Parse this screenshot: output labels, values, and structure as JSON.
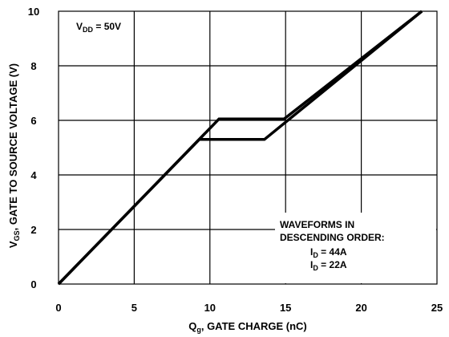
{
  "chart_data": {
    "type": "line",
    "title": "",
    "xlabel": {
      "main": "Q",
      "sub": "g",
      "rest": ", GATE CHARGE (nC)"
    },
    "ylabel": {
      "main": "V",
      "sub": "GS",
      "rest": ", GATE TO SOURCE VOLTAGE (V)"
    },
    "xlim": [
      0,
      25
    ],
    "ylim": [
      0,
      10
    ],
    "x_ticks": [
      0,
      5,
      10,
      15,
      20,
      25
    ],
    "y_ticks": [
      0,
      2,
      4,
      6,
      8,
      10
    ],
    "grid": true,
    "annotations": {
      "vdd": {
        "main": "V",
        "sub": "DD",
        "rest": " = 50V"
      },
      "waveforms_line1": "WAVEFORMS IN",
      "waveforms_line2": "DESCENDING ORDER:",
      "id1": {
        "main": "I",
        "sub": "D",
        "rest": " = 44A"
      },
      "id2": {
        "main": "I",
        "sub": "D",
        "rest": " = 22A"
      }
    },
    "series": [
      {
        "points": [
          [
            0,
            0
          ],
          [
            10.6,
            6.05
          ],
          [
            14.9,
            6.05
          ],
          [
            24,
            10
          ]
        ]
      },
      {
        "points": [
          [
            0,
            0
          ],
          [
            9.3,
            5.3
          ],
          [
            13.6,
            5.3
          ],
          [
            24,
            10
          ]
        ]
      }
    ],
    "line_color": "#000000",
    "line_width": 3.5
  }
}
